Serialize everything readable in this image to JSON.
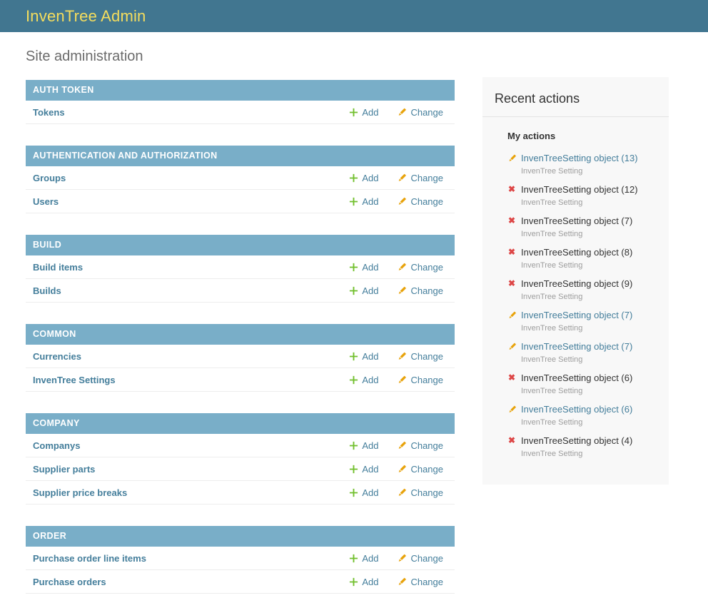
{
  "header": {
    "title": "InvenTree Admin"
  },
  "page_title": "Site administration",
  "labels": {
    "add": "Add",
    "change": "Change"
  },
  "colors": {
    "header_bg": "#417690",
    "header_title": "#f5dd5d",
    "module_caption_bg": "#79aec8",
    "link": "#447e9b",
    "add_green": "#70bf2b",
    "change_yellow": "#e8a30c",
    "delete_red": "#dd4646",
    "panel_bg": "#f8f8f8",
    "muted_text": "#9d9d9d"
  },
  "modules": [
    {
      "caption": "AUTH TOKEN",
      "rows": [
        {
          "name": "Tokens"
        }
      ]
    },
    {
      "caption": "AUTHENTICATION AND AUTHORIZATION",
      "rows": [
        {
          "name": "Groups"
        },
        {
          "name": "Users"
        }
      ]
    },
    {
      "caption": "BUILD",
      "rows": [
        {
          "name": "Build items"
        },
        {
          "name": "Builds"
        }
      ]
    },
    {
      "caption": "COMMON",
      "rows": [
        {
          "name": "Currencies"
        },
        {
          "name": "InvenTree Settings"
        }
      ]
    },
    {
      "caption": "COMPANY",
      "rows": [
        {
          "name": "Companys"
        },
        {
          "name": "Supplier parts"
        },
        {
          "name": "Supplier price breaks"
        }
      ]
    },
    {
      "caption": "ORDER",
      "rows": [
        {
          "name": "Purchase order line items"
        },
        {
          "name": "Purchase orders"
        }
      ]
    }
  ],
  "sidebar": {
    "title": "Recent actions",
    "subtitle": "My actions",
    "items": [
      {
        "action": "change",
        "label": "InvenTreeSetting object (13)",
        "object_type": "InvenTree Setting"
      },
      {
        "action": "delete",
        "label": "InvenTreeSetting object (12)",
        "object_type": "InvenTree Setting"
      },
      {
        "action": "delete",
        "label": "InvenTreeSetting object (7)",
        "object_type": "InvenTree Setting"
      },
      {
        "action": "delete",
        "label": "InvenTreeSetting object (8)",
        "object_type": "InvenTree Setting"
      },
      {
        "action": "delete",
        "label": "InvenTreeSetting object (9)",
        "object_type": "InvenTree Setting"
      },
      {
        "action": "change",
        "label": "InvenTreeSetting object (7)",
        "object_type": "InvenTree Setting"
      },
      {
        "action": "change",
        "label": "InvenTreeSetting object (7)",
        "object_type": "InvenTree Setting"
      },
      {
        "action": "delete",
        "label": "InvenTreeSetting object (6)",
        "object_type": "InvenTree Setting"
      },
      {
        "action": "change",
        "label": "InvenTreeSetting object (6)",
        "object_type": "InvenTree Setting"
      },
      {
        "action": "delete",
        "label": "InvenTreeSetting object (4)",
        "object_type": "InvenTree Setting"
      }
    ]
  }
}
